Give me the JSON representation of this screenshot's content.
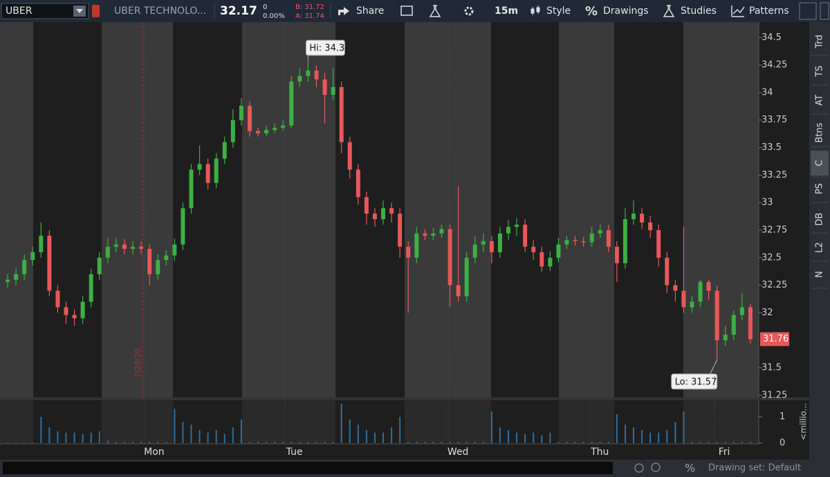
{
  "toolbar": {
    "symbol": "UBER",
    "description": "UBER TECHNOLO...",
    "last": "32.17",
    "net_change": "0",
    "net_change_pct": "0.00%",
    "bid": "B: 31.72",
    "ask": "A: 31.74",
    "share": "Share",
    "timeframe": "15m",
    "style": "Style",
    "drawings": "Drawings",
    "studies": "Studies",
    "patterns": "Patterns"
  },
  "sidebar_tabs": [
    "Trd",
    "TS",
    "AT",
    "Btns",
    "C",
    "PS",
    "DB",
    "L2",
    "N"
  ],
  "status_bar": {
    "drawing_set": "Drawing set: Default"
  },
  "chart_data": [
    {
      "type": "candlestick",
      "up_color": "#3cb043",
      "down_color": "#e8585a",
      "date_marker": "7/20/20",
      "x": [
        0,
        1,
        2,
        3,
        4,
        5,
        6,
        7,
        8,
        9,
        10,
        11,
        12,
        13,
        14,
        15,
        16,
        17,
        18,
        19,
        20,
        21,
        22,
        23,
        24,
        25,
        26,
        27,
        28,
        29,
        30,
        31,
        32,
        33,
        34,
        35,
        36,
        37,
        38,
        39,
        40,
        41,
        42,
        43,
        44,
        45,
        46,
        47,
        48,
        49,
        50,
        51,
        52,
        53,
        54,
        55,
        56,
        57,
        58,
        59,
        60,
        61,
        62,
        63,
        64,
        65,
        66,
        67,
        68,
        69,
        70,
        71,
        72,
        73,
        74,
        75,
        76,
        77,
        78,
        79,
        80,
        81,
        82,
        83,
        84,
        85,
        86,
        87,
        88,
        89
      ],
      "open": [
        32.28,
        32.3,
        32.35,
        32.48,
        32.55,
        32.7,
        32.2,
        32.05,
        31.98,
        31.95,
        32.1,
        32.35,
        32.5,
        32.6,
        32.62,
        32.58,
        32.6,
        32.58,
        32.35,
        32.48,
        32.52,
        32.62,
        32.95,
        33.3,
        33.35,
        33.18,
        33.4,
        33.55,
        33.75,
        33.88,
        33.65,
        33.63,
        33.66,
        33.68,
        33.7,
        34.1,
        34.15,
        34.2,
        34.12,
        33.98,
        34.05,
        33.55,
        33.3,
        33.05,
        32.9,
        32.85,
        32.95,
        32.9,
        32.6,
        32.5,
        32.72,
        32.7,
        32.72,
        32.76,
        32.25,
        32.15,
        32.5,
        32.62,
        32.65,
        32.55,
        32.72,
        32.78,
        32.8,
        32.6,
        32.55,
        32.42,
        32.5,
        32.62,
        32.66,
        32.65,
        32.64,
        32.72,
        32.75,
        32.6,
        32.45,
        32.85,
        32.9,
        32.82,
        32.75,
        32.5,
        32.25,
        32.2,
        32.05,
        32.1,
        32.28,
        32.2,
        31.75,
        31.8,
        31.98,
        32.05
      ],
      "high": [
        32.35,
        32.4,
        32.53,
        32.6,
        32.82,
        32.75,
        32.25,
        32.1,
        32.03,
        32.15,
        32.4,
        32.55,
        32.68,
        32.68,
        32.67,
        32.65,
        32.65,
        32.62,
        32.53,
        32.57,
        32.67,
        33.0,
        33.35,
        33.52,
        33.4,
        33.45,
        33.6,
        33.85,
        33.95,
        33.92,
        33.68,
        33.7,
        33.72,
        33.75,
        34.15,
        34.22,
        34.3,
        34.25,
        34.18,
        34.22,
        34.1,
        33.6,
        33.35,
        33.1,
        32.95,
        33.02,
        33.0,
        32.95,
        32.65,
        32.78,
        32.76,
        32.77,
        32.8,
        32.8,
        33.15,
        32.55,
        32.7,
        32.72,
        32.7,
        32.78,
        32.84,
        32.86,
        32.85,
        32.66,
        32.6,
        32.56,
        32.68,
        32.7,
        32.7,
        32.69,
        32.78,
        32.8,
        32.8,
        32.65,
        32.95,
        33.02,
        32.95,
        32.88,
        32.8,
        32.55,
        32.3,
        32.78,
        32.15,
        32.3,
        32.3,
        32.25,
        31.88,
        32.02,
        32.18,
        32.08
      ],
      "low": [
        32.23,
        32.25,
        32.3,
        32.43,
        32.5,
        32.15,
        32.0,
        31.9,
        31.88,
        31.9,
        32.05,
        32.3,
        32.45,
        32.55,
        32.53,
        32.53,
        32.53,
        32.25,
        32.3,
        32.43,
        32.47,
        32.57,
        32.9,
        33.25,
        33.12,
        33.13,
        33.35,
        33.5,
        33.7,
        33.6,
        33.6,
        33.6,
        33.63,
        33.65,
        33.68,
        34.05,
        34.1,
        34.05,
        33.72,
        33.93,
        33.45,
        33.22,
        32.98,
        32.8,
        32.78,
        32.8,
        32.82,
        32.5,
        32.0,
        32.45,
        32.66,
        32.66,
        32.68,
        32.05,
        32.1,
        32.1,
        32.45,
        32.55,
        32.45,
        32.5,
        32.66,
        32.7,
        32.55,
        32.48,
        32.37,
        32.38,
        32.46,
        32.58,
        32.61,
        32.6,
        32.6,
        32.68,
        32.55,
        32.28,
        32.4,
        32.8,
        32.76,
        32.68,
        32.42,
        32.18,
        32.1,
        32.0,
        32.0,
        32.05,
        32.12,
        31.57,
        31.7,
        31.75,
        31.93,
        31.72
      ],
      "close": [
        32.3,
        32.35,
        32.48,
        32.55,
        32.7,
        32.2,
        32.05,
        31.98,
        31.95,
        32.1,
        32.35,
        32.5,
        32.6,
        32.62,
        32.58,
        32.6,
        32.58,
        32.35,
        32.48,
        32.52,
        32.62,
        32.95,
        33.3,
        33.35,
        33.18,
        33.4,
        33.55,
        33.75,
        33.88,
        33.65,
        33.63,
        33.66,
        33.68,
        33.7,
        34.1,
        34.15,
        34.2,
        34.12,
        33.98,
        34.05,
        33.55,
        33.3,
        33.05,
        32.9,
        32.85,
        32.95,
        32.9,
        32.6,
        32.5,
        32.72,
        32.7,
        32.72,
        32.76,
        32.25,
        32.15,
        32.5,
        32.62,
        32.65,
        32.55,
        32.72,
        32.78,
        32.8,
        32.6,
        32.55,
        32.42,
        32.5,
        32.62,
        32.66,
        32.65,
        32.64,
        32.72,
        32.75,
        32.6,
        32.45,
        32.85,
        32.9,
        32.82,
        32.75,
        32.5,
        32.25,
        32.2,
        32.05,
        32.1,
        32.28,
        32.2,
        31.75,
        31.8,
        31.98,
        32.05,
        31.76
      ],
      "annotations": [
        {
          "text": "Hi: 34.3",
          "x": 36,
          "y": 34.3
        },
        {
          "text": "Lo: 31.57",
          "x": 85,
          "y": 31.57
        }
      ],
      "xlim": [
        -0.5,
        90
      ],
      "ylim": [
        31.23,
        34.64
      ],
      "yticks": [
        31.25,
        31.5,
        32,
        32.25,
        32.5,
        32.75,
        33,
        33.25,
        33.5,
        33.75,
        34,
        34.25,
        34.5
      ]
    },
    {
      "type": "bar",
      "color": "#2f6f9f",
      "y_label": "<millio...",
      "x": [
        0,
        1,
        2,
        3,
        4,
        5,
        6,
        7,
        8,
        9,
        10,
        11,
        12,
        13,
        14,
        15,
        16,
        17,
        18,
        19,
        20,
        21,
        22,
        23,
        24,
        25,
        26,
        27,
        28,
        29,
        30,
        31,
        32,
        33,
        34,
        35,
        36,
        37,
        38,
        39,
        40,
        41,
        42,
        43,
        44,
        45,
        46,
        47,
        48,
        49,
        50,
        51,
        52,
        53,
        54,
        55,
        56,
        57,
        58,
        59,
        60,
        61,
        62,
        63,
        64,
        65,
        66,
        67,
        68,
        69,
        70,
        71,
        72,
        73,
        74,
        75,
        76,
        77,
        78,
        79,
        80,
        81,
        82,
        83,
        84,
        85,
        86,
        87,
        88,
        89
      ],
      "values": [
        0.02,
        0.02,
        0.02,
        0.02,
        1.0,
        0.6,
        0.45,
        0.4,
        0.4,
        0.35,
        0.4,
        0.45,
        0.1,
        0.05,
        0.05,
        0.05,
        0.05,
        0.05,
        0.05,
        0.05,
        1.3,
        0.8,
        0.7,
        0.5,
        0.4,
        0.5,
        0.35,
        0.6,
        0.9,
        0.05,
        0.05,
        0.05,
        0.05,
        0.05,
        0.05,
        0.05,
        0.05,
        0.05,
        0.05,
        0.05,
        1.5,
        0.9,
        0.7,
        0.5,
        0.4,
        0.4,
        0.6,
        1.0,
        0.05,
        0.05,
        0.05,
        0.05,
        0.05,
        0.05,
        0.05,
        0.05,
        0.05,
        0.05,
        1.2,
        0.6,
        0.5,
        0.4,
        0.35,
        0.4,
        0.3,
        0.4,
        0.05,
        0.05,
        0.05,
        0.05,
        0.05,
        0.05,
        0.05,
        1.1,
        0.7,
        0.6,
        0.5,
        0.4,
        0.4,
        0.5,
        0.8,
        1.2,
        0.05,
        0.05,
        0.05,
        0.05,
        0.05,
        0.05,
        0.05,
        0.05
      ],
      "xlim": [
        -0.5,
        90
      ],
      "ylim": [
        0,
        1.6
      ],
      "yticks": [
        0,
        1
      ],
      "xticks": [
        {
          "value": 16.4,
          "label": "Mon"
        },
        {
          "value": 33.2,
          "label": "Tue"
        },
        {
          "value": 52.8,
          "label": "Wed"
        },
        {
          "value": 69.8,
          "label": "Thu"
        },
        {
          "value": 84.7,
          "label": "Fri"
        }
      ]
    }
  ]
}
